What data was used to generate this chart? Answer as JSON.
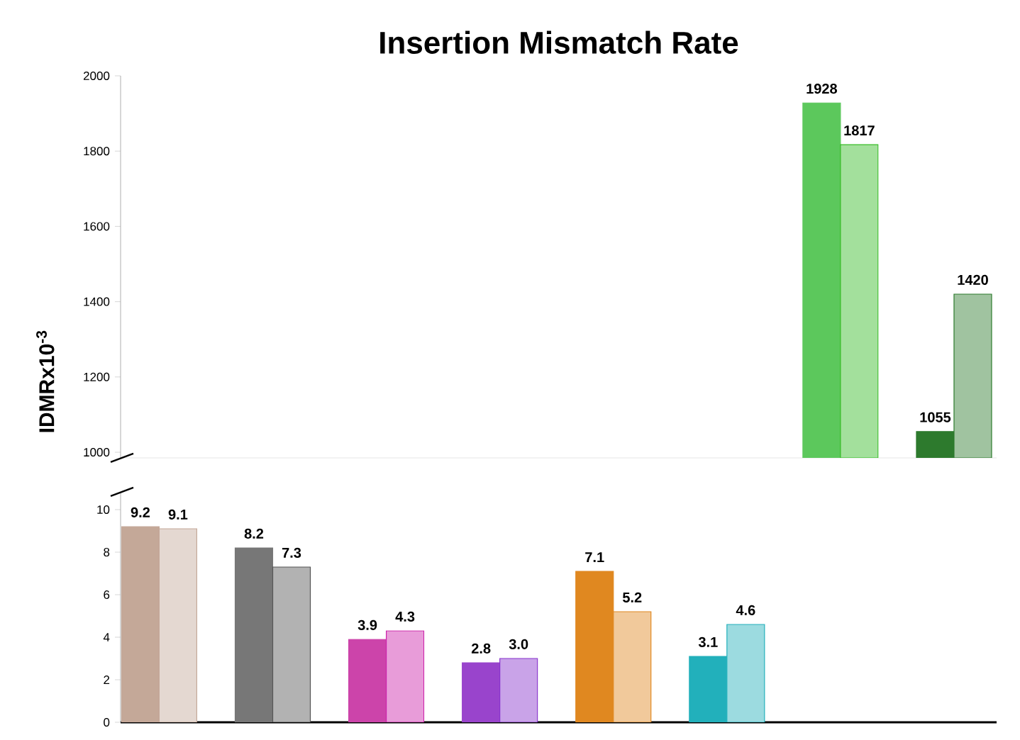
{
  "chart_data": [
    {
      "type": "bar",
      "title": "Insertion Mismatch Rate",
      "ylabel": "IDMRx10$^{-3}$",
      "categories": [
        null,
        null,
        null,
        null,
        null,
        null,
        null,
        null
      ],
      "ylim": [
        985,
        2000
      ],
      "yticks": [
        1000,
        1200,
        1400,
        1600,
        1800,
        2000
      ],
      "tick_labels": "y",
      "data_labels": true,
      "series": [
        {
          "colors": [
            "#c4a898",
            "#777777",
            "#cc44aa",
            "#9944cc",
            "#e08820",
            "#22b0bb",
            "#5cc85c",
            "#2d7a2d"
          ],
          "values": [
            null,
            null,
            null,
            null,
            null,
            null,
            1928,
            1055
          ]
        },
        {
          "colors": [
            "#c4a898",
            "#555555",
            "#cc22aa",
            "#8833cc",
            "#e08820",
            "#22b0bb",
            "#33bb22",
            "#2d7a2d"
          ],
          "values": [
            null,
            null,
            null,
            null,
            null,
            null,
            1817,
            1420
          ]
        }
      ]
    },
    {
      "type": "bar",
      "categories": [
        null,
        null,
        null,
        null,
        null,
        null,
        null,
        null
      ],
      "ylim": [
        0,
        10.8
      ],
      "yticks": [
        0,
        2,
        4,
        6,
        8,
        10
      ],
      "tick_labels": "y",
      "series": [
        {
          "colors": [
            "#c4a898",
            "#777777",
            "#cc44aa",
            "#9944cc",
            "#e08820",
            "#22b0bb",
            "#5cc85c",
            "#2d7a2d"
          ],
          "values": [
            9.2,
            8.2,
            3.9,
            2.8,
            7.1,
            3.1,
            null,
            null
          ],
          "value_labels": [
            "9.2",
            "8.2",
            "3.9",
            "2.8",
            "7.1",
            "3.1",
            null,
            null
          ]
        },
        {
          "colors": [
            "#c4a898",
            "#555555",
            "#cc22aa",
            "#8833cc",
            "#e08820",
            "#22b0bb",
            "#33bb22",
            "#2d7a2d"
          ],
          "values": [
            9.1,
            7.3,
            4.3,
            3.0,
            5.2,
            4.6,
            null,
            null
          ],
          "value_labels": [
            "9.1",
            "7.3",
            "4.3",
            "3.0",
            "5.2",
            "4.6",
            null,
            null
          ]
        }
      ]
    }
  ]
}
